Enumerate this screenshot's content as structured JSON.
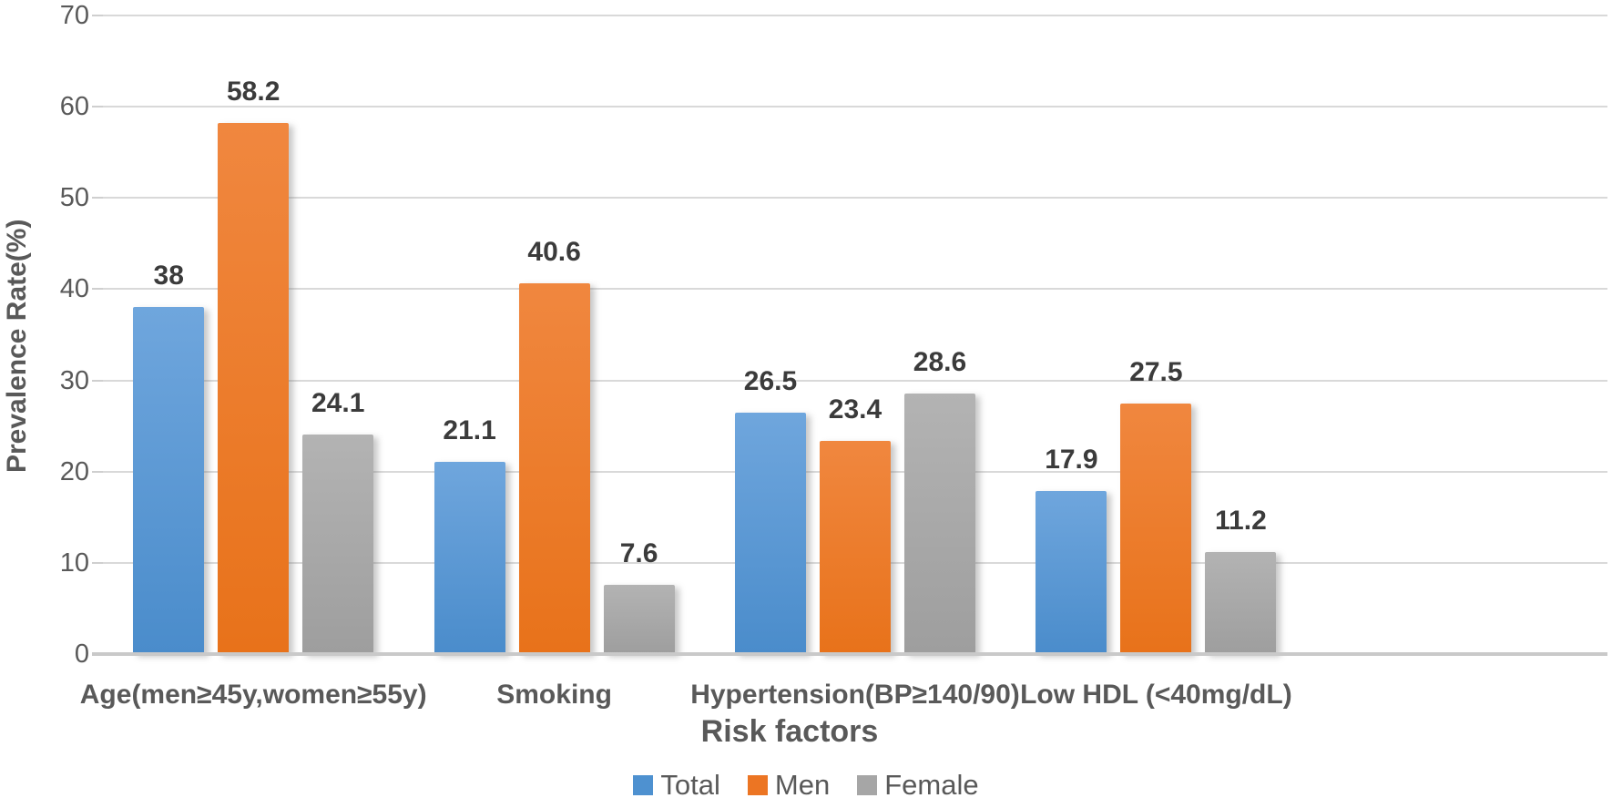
{
  "chart_data": {
    "type": "bar",
    "title": "",
    "xlabel": "Risk factors",
    "ylabel": "Prevalence Rate(%)",
    "ylim": [
      0,
      70
    ],
    "yticks": [
      0,
      10,
      20,
      30,
      40,
      50,
      60,
      70
    ],
    "grid": true,
    "legend_position": "bottom",
    "categories": [
      "Age(men≥45y,women≥55y)",
      "Smoking",
      "Hypertension(BP≥140/90)",
      "Low HDL (<40mg/dL)"
    ],
    "series": [
      {
        "name": "Total",
        "values": [
          38,
          21.1,
          26.5,
          17.9
        ],
        "data_labels": [
          "38",
          "21.1",
          "26.5",
          "17.9"
        ],
        "color": "#4E91D0",
        "color_top": "#6FA6DD",
        "color_bottom": "#4A8CCB"
      },
      {
        "name": "Men",
        "values": [
          58.2,
          40.6,
          23.4,
          27.5
        ],
        "data_labels": [
          "58.2",
          "40.6",
          "23.4",
          "27.5"
        ],
        "color": "#EC7523",
        "color_top": "#F0873F",
        "color_bottom": "#E8721A"
      },
      {
        "name": "Female",
        "values": [
          24.1,
          7.6,
          28.6,
          11.2
        ],
        "data_labels": [
          "24.1",
          "7.6",
          "28.6",
          "11.2"
        ],
        "color": "#A6A6A6",
        "color_top": "#B3B3B3",
        "color_bottom": "#9E9E9E"
      }
    ],
    "grid_color": "#d9d9d9",
    "axis_line_color": "#c9c9c9",
    "tick_label_color": "#595959",
    "data_label_color": "#3b3b3b"
  }
}
